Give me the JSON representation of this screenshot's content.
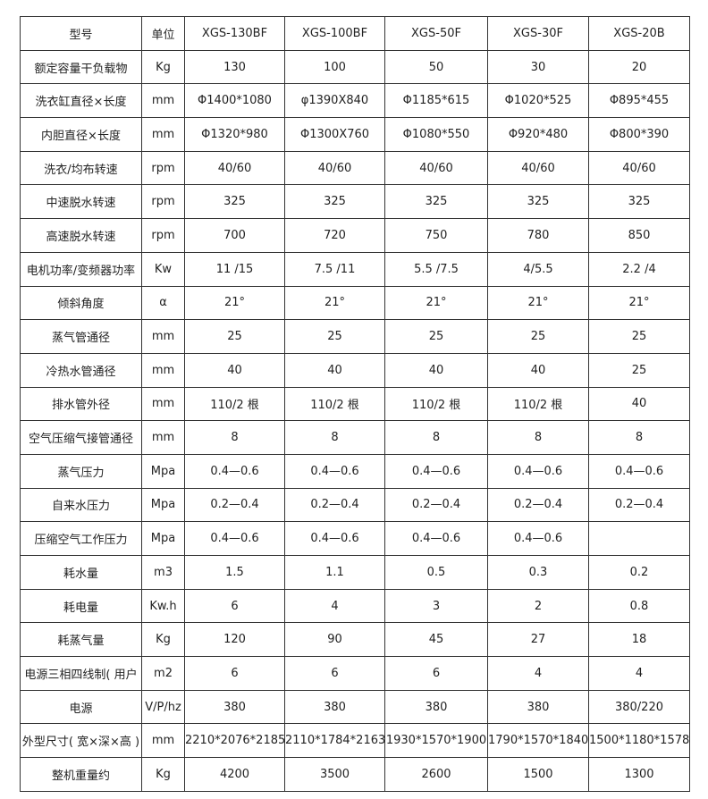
{
  "table": {
    "header": [
      "型号",
      "单位",
      "XGS-130BF",
      "XGS-100BF",
      "XGS-50F",
      "XGS-30F",
      "XGS-20B"
    ],
    "rows": [
      [
        "额定容量干负载物",
        "Kg",
        "130",
        "100",
        "50",
        "30",
        "20"
      ],
      [
        "洗衣缸直径×长度",
        "mm",
        "Φ1400*1080",
        "φ1390X840",
        "Φ1185*615",
        "Φ1020*525",
        "Φ895*455"
      ],
      [
        "内胆直径×长度",
        "mm",
        "Φ1320*980",
        "Φ1300X760",
        "Φ1080*550",
        "Φ920*480",
        "Φ800*390"
      ],
      [
        "洗衣/均布转速",
        "rpm",
        "40/60",
        "40/60",
        "40/60",
        "40/60",
        "40/60"
      ],
      [
        "中速脱水转速",
        "rpm",
        "325",
        "325",
        "325",
        "325",
        "325"
      ],
      [
        "高速脱水转速",
        "rpm",
        "700",
        "720",
        "750",
        "780",
        "850"
      ],
      [
        "电机功率/变频器功率",
        "Kw",
        "11 /15",
        "7.5 /11",
        "5.5 /7.5",
        "4/5.5",
        "2.2 /4"
      ],
      [
        "倾斜角度",
        "α",
        "21°",
        "21°",
        "21°",
        "21°",
        "21°"
      ],
      [
        "蒸气管通径",
        "mm",
        "25",
        "25",
        "25",
        "25",
        "25"
      ],
      [
        "冷热水管通径",
        "mm",
        "40",
        "40",
        "40",
        "40",
        "25"
      ],
      [
        "排水管外径",
        "mm",
        "110/2 根",
        "110/2 根",
        "110/2 根",
        "110/2 根",
        "40"
      ],
      [
        "空气压缩气接管通径",
        "mm",
        "8",
        "8",
        "8",
        "8",
        "8"
      ],
      [
        "蒸气压力",
        "Mpa",
        "0.4—0.6",
        "0.4—0.6",
        "0.4—0.6",
        "0.4—0.6",
        "0.4—0.6"
      ],
      [
        "自来水压力",
        "Mpa",
        "0.2—0.4",
        "0.2—0.4",
        "0.2—0.4",
        "0.2—0.4",
        "0.2—0.4"
      ],
      [
        "压缩空气工作压力",
        "Mpa",
        "0.4—0.6",
        "0.4—0.6",
        "0.4—0.6",
        "0.4—0.6",
        null
      ],
      [
        "耗水量",
        "m3",
        "1.5",
        "1.1",
        "0.5",
        "0.3",
        "0.2"
      ],
      [
        "耗电量",
        "Kw.h",
        "6",
        "4",
        "3",
        "2",
        "0.8"
      ],
      [
        "耗蒸气量",
        "Kg",
        "120",
        "90",
        "45",
        "27",
        "18"
      ],
      [
        "电源三相四线制( 用户",
        "m2",
        "6",
        "6",
        "6",
        "4",
        "4"
      ],
      [
        "电源",
        "V/P/hz",
        "380",
        "380",
        "380",
        "380",
        "380/220"
      ],
      [
        "外型尺寸( 宽×深×高 )",
        "mm",
        "2210*2076*2185",
        "2110*1784*2163",
        "1930*1570*1900",
        "1790*1570*1840",
        "1500*1180*1578"
      ],
      [
        "整机重量约",
        "Kg",
        "4200",
        "3500",
        "2600",
        "1500",
        "1300"
      ]
    ]
  }
}
